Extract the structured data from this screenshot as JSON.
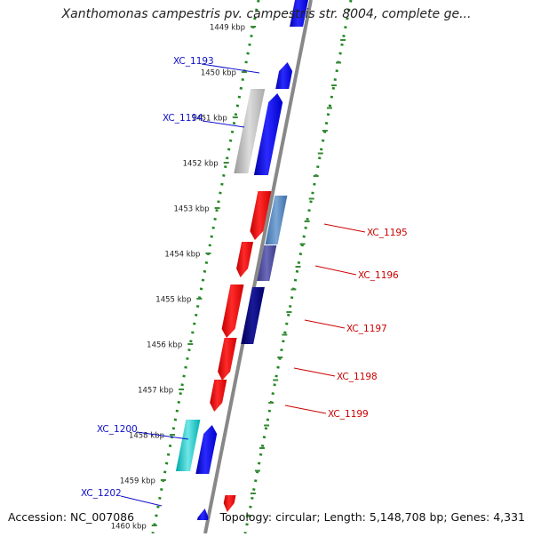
{
  "title": "Xanthomonas campestris pv. campestris str. 8004, complete ge...",
  "footer": {
    "accession": "Accession: NC_007086",
    "summary": "Topology: circular; Length: 5,148,708 bp; Genes: 4,331"
  },
  "ruler_ticks": [
    "1449 kbp",
    "1450 kbp",
    "1451 kbp",
    "1452 kbp",
    "1453 kbp",
    "1454 kbp",
    "1455 kbp",
    "1456 kbp",
    "1457 kbp",
    "1458 kbp",
    "1459 kbp",
    "1460 kbp"
  ],
  "genes": [
    {
      "label": "XC_1193",
      "color": "#1010cc"
    },
    {
      "label": "XC_1194",
      "color": "#1010cc"
    },
    {
      "label": "XC_1195",
      "color": "#cc0000"
    },
    {
      "label": "XC_1196",
      "color": "#cc0000"
    },
    {
      "label": "XC_1197",
      "color": "#cc0000"
    },
    {
      "label": "XC_1198",
      "color": "#cc0000"
    },
    {
      "label": "XC_1199",
      "color": "#cc0000"
    },
    {
      "label": "XC_1200",
      "color": "#1010cc"
    },
    {
      "label": "XC_1202",
      "color": "#1010cc"
    }
  ],
  "colors": {
    "forward_gene": "#0000ee",
    "reverse_gene": "#ee0000",
    "backbone": "#888888",
    "dots": "#228822",
    "tick_dash": "#3a8a3a"
  }
}
